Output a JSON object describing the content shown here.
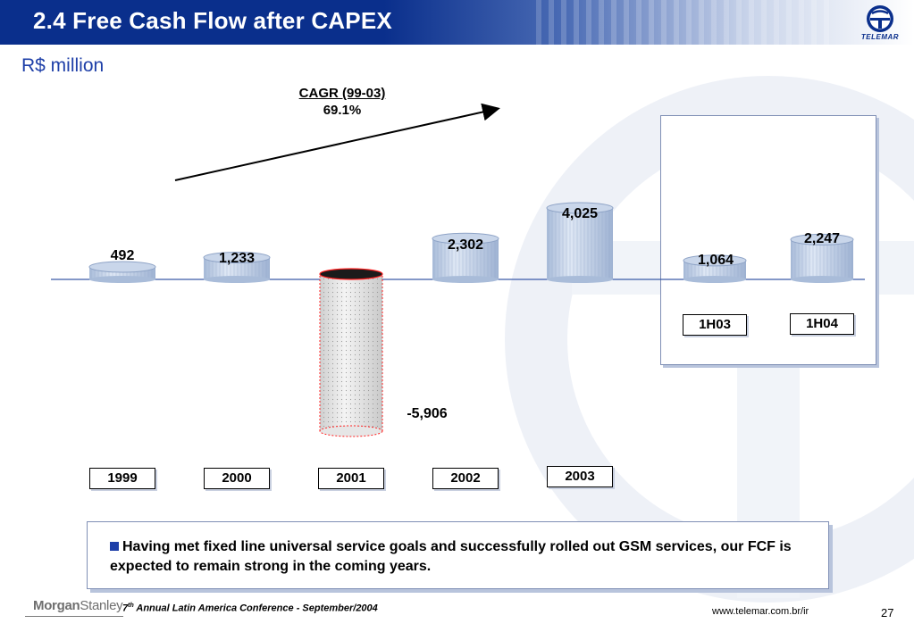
{
  "header": {
    "title": "2.4 Free Cash Flow after CAPEX",
    "logo_text": "TELEMAR",
    "brand_color": "#0a2f8c"
  },
  "subtitle": "R$ million",
  "cagr": {
    "label": "CAGR (99-03)",
    "value": "69.1%"
  },
  "chart_data": {
    "type": "bar",
    "categories": [
      "1999",
      "2000",
      "2001",
      "2002",
      "2003",
      "1H03",
      "1H04"
    ],
    "values": [
      492,
      1233,
      -5906,
      2302,
      4025,
      1064,
      2247
    ],
    "value_labels": [
      "492",
      "1,233",
      "-5,906",
      "2,302",
      "4,025",
      "1,064",
      "2,247"
    ],
    "title": "",
    "xlabel": "",
    "ylabel": "",
    "bar_style": "cylinder",
    "positive_color": "#c9d6ea",
    "negative_color": "#e6e6e6",
    "negative_outline": "#ff2020"
  },
  "note": "Having met fixed line universal service goals and successfully rolled out GSM services, our FCF is expected to remain strong in the coming years.",
  "footer": {
    "logo_part1": "Morgan",
    "logo_part2": "Stanley",
    "conference_sup": "th",
    "conference_num": "7",
    "conference": "Annual Latin America Conference -  September/2004",
    "website": "www.telemar.com.br/ir",
    "page": "27"
  }
}
